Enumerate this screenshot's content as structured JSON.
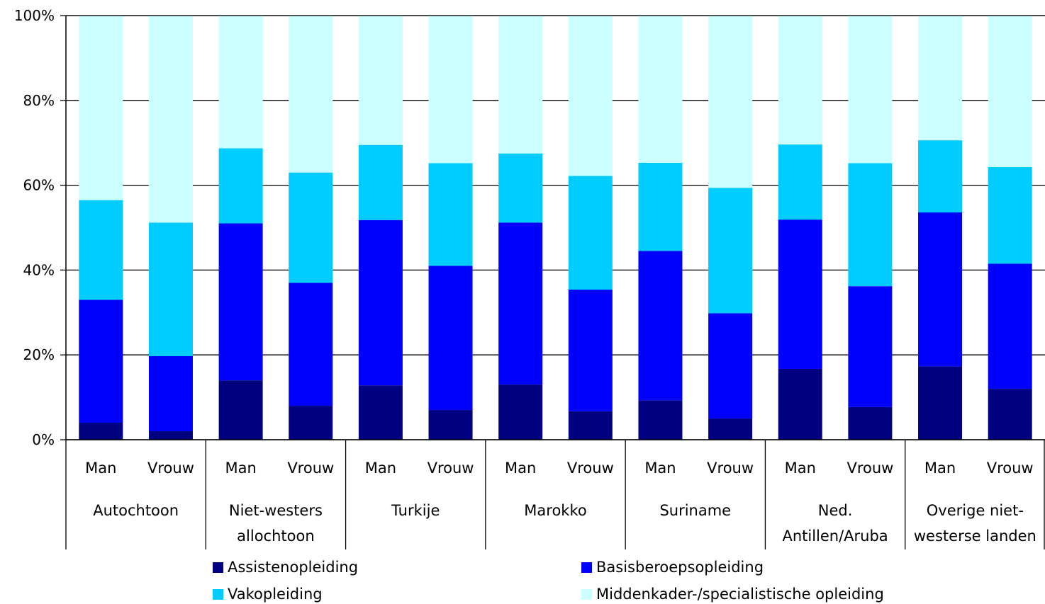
{
  "chart_data": {
    "type": "bar",
    "stacked": true,
    "stack_mode": "percent",
    "title": "",
    "xlabel": "",
    "ylabel": "",
    "ylim": [
      0,
      100
    ],
    "yticks": [
      "0%",
      "20%",
      "40%",
      "60%",
      "80%",
      "100%"
    ],
    "grid": true,
    "legend_position": "bottom",
    "groups": [
      {
        "label_lines": [
          "Autochtoon"
        ]
      },
      {
        "label_lines": [
          "Niet-westers",
          "allochtoon"
        ]
      },
      {
        "label_lines": [
          "Turkije"
        ]
      },
      {
        "label_lines": [
          "Marokko"
        ]
      },
      {
        "label_lines": [
          "Suriname"
        ]
      },
      {
        "label_lines": [
          "Ned.",
          "Antillen/Aruba"
        ]
      },
      {
        "label_lines": [
          "Overige niet-",
          "westerse landen"
        ]
      }
    ],
    "categories": [
      "Man",
      "Vrouw",
      "Man",
      "Vrouw",
      "Man",
      "Vrouw",
      "Man",
      "Vrouw",
      "Man",
      "Vrouw",
      "Man",
      "Vrouw",
      "Man",
      "Vrouw"
    ],
    "series": [
      {
        "name": "Assistenopleiding",
        "color": "#000080",
        "values": [
          4,
          2,
          14,
          8,
          12.8,
          7,
          13,
          6.7,
          9.3,
          5,
          16.7,
          7.7,
          17.3,
          12
        ]
      },
      {
        "name": "Basisberoepsopleiding",
        "color": "#0000ff",
        "values": [
          29,
          17.7,
          37,
          29,
          39,
          34,
          38.2,
          28.7,
          35.2,
          24.8,
          35.2,
          28.5,
          36.3,
          29.5
        ]
      },
      {
        "name": "Vakopleiding",
        "color": "#00ccff",
        "values": [
          23.5,
          31.5,
          17.7,
          26,
          17.7,
          24.2,
          16.3,
          26.8,
          20.8,
          29.6,
          17.7,
          29,
          17,
          22.8
        ]
      },
      {
        "name": "Middenkader-/specialistische opleiding",
        "color": "#ccffff",
        "values": [
          43.5,
          48.8,
          31.3,
          37,
          30.5,
          34.8,
          32.5,
          37.8,
          34.7,
          40.6,
          30.4,
          34.8,
          29.4,
          35.7
        ]
      }
    ]
  }
}
